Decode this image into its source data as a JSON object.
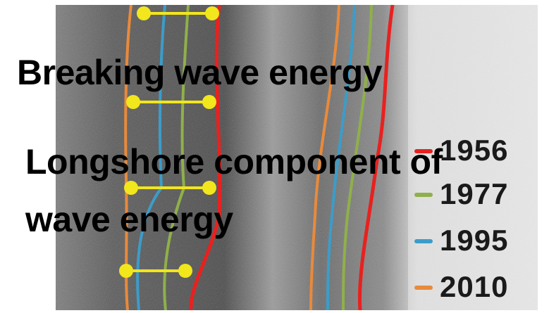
{
  "overlay_text": {
    "line1": "Breaking wave energy",
    "line2": "Longshore component of",
    "line3": "wave energy"
  },
  "legend": [
    {
      "year": "1956",
      "color": "#e8211f"
    },
    {
      "year": "1977",
      "color": "#8fb04a"
    },
    {
      "year": "1995",
      "color": "#3c9cc9"
    },
    {
      "year": "2010",
      "color": "#e98a3b"
    }
  ],
  "transect_color": "#f2e61c"
}
